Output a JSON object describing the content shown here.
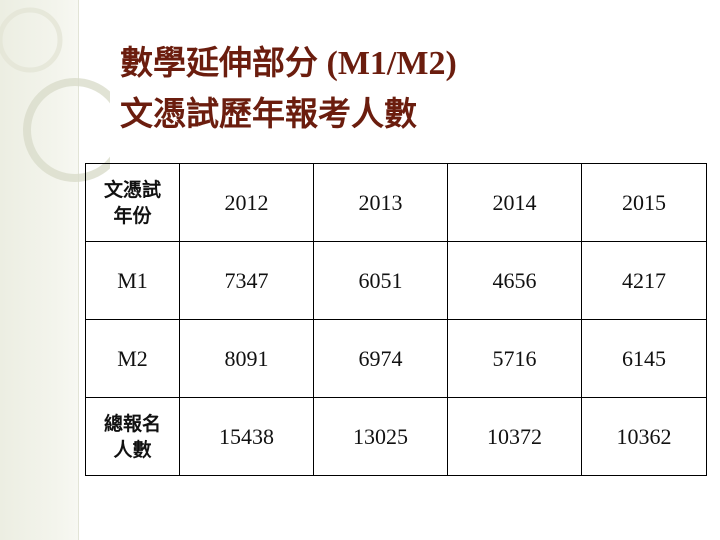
{
  "title": {
    "line1_cjk": "數學延伸部分",
    "line1_latin": " (M1/M2)",
    "line2": "文憑試歷年報考人數"
  },
  "table": {
    "header": [
      "文憑試\n年份",
      "2012",
      "2013",
      "2014",
      "2015"
    ],
    "rows": [
      [
        "M1",
        "7347",
        "6051",
        "4656",
        "4217"
      ],
      [
        "M2",
        "8091",
        "6974",
        "5716",
        "6145"
      ],
      [
        "總報名\n人數",
        "15438",
        "13025",
        "10372",
        "10362"
      ]
    ]
  },
  "colors": {
    "title": "#6b1d0e",
    "side_band": "#eceee2"
  }
}
